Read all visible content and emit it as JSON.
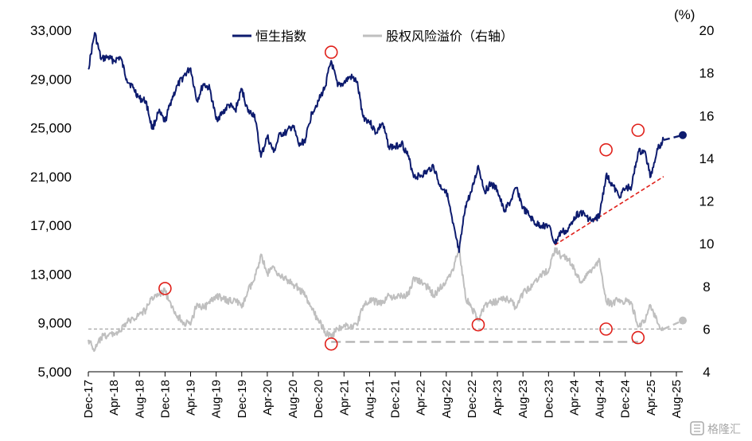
{
  "chart_data": {
    "type": "line",
    "title": "",
    "legend_position": "top-center",
    "right_axis_unit": "(%)",
    "grid": false,
    "x_labels": [
      "Dec-17",
      "Apr-18",
      "Aug-18",
      "Dec-18",
      "Apr-19",
      "Aug-19",
      "Dec-19",
      "Apr-20",
      "Aug-20",
      "Dec-20",
      "Apr-21",
      "Aug-21",
      "Dec-21",
      "Apr-22",
      "Aug-22",
      "Dec-22",
      "Apr-23",
      "Aug-23",
      "Dec-23",
      "Apr-24",
      "Aug-24",
      "Dec-24",
      "Apr-25",
      "Aug-25"
    ],
    "y_left": {
      "ticks": [
        5000,
        9000,
        13000,
        17000,
        21000,
        25000,
        29000,
        33000
      ],
      "tick_labels": [
        "5,000",
        "9,000",
        "13,000",
        "17,000",
        "21,000",
        "25,000",
        "29,000",
        "33,000"
      ],
      "range": [
        5000,
        33000
      ]
    },
    "y_right": {
      "ticks": [
        4,
        6,
        8,
        10,
        12,
        14,
        16,
        18,
        20
      ],
      "tick_labels": [
        "4",
        "6",
        "8",
        "10",
        "12",
        "14",
        "16",
        "18",
        "20"
      ],
      "range": [
        4,
        20
      ]
    },
    "series": [
      {
        "name": "恒生指数",
        "axis": "left",
        "color": "#0d1b6e",
        "points": [
          [
            "Dec-17",
            29800
          ],
          [
            "Jan-18",
            32800
          ],
          [
            "Feb-18",
            30600
          ],
          [
            "Mar-18",
            30800
          ],
          [
            "Apr-18",
            30500
          ],
          [
            "May-18",
            30800
          ],
          [
            "Jun-18",
            29000
          ],
          [
            "Jul-18",
            28300
          ],
          [
            "Aug-18",
            27400
          ],
          [
            "Sep-18",
            27200
          ],
          [
            "Oct-18",
            24900
          ],
          [
            "Nov-18",
            26300
          ],
          [
            "Dec-18",
            25500
          ],
          [
            "Jan-19",
            27300
          ],
          [
            "Feb-19",
            28500
          ],
          [
            "Mar-19",
            29300
          ],
          [
            "Apr-19",
            29900
          ],
          [
            "May-19",
            27200
          ],
          [
            "Jun-19",
            28600
          ],
          [
            "Jul-19",
            28200
          ],
          [
            "Aug-19",
            25700
          ],
          [
            "Sep-19",
            26200
          ],
          [
            "Oct-19",
            26900
          ],
          [
            "Nov-19",
            26400
          ],
          [
            "Dec-19",
            28200
          ],
          [
            "Jan-20",
            26300
          ],
          [
            "Feb-20",
            26100
          ],
          [
            "Mar-20",
            22600
          ],
          [
            "Apr-20",
            24300
          ],
          [
            "May-20",
            23000
          ],
          [
            "Jun-20",
            24500
          ],
          [
            "Jul-20",
            24600
          ],
          [
            "Aug-20",
            25200
          ],
          [
            "Sep-20",
            23500
          ],
          [
            "Oct-20",
            24100
          ],
          [
            "Nov-20",
            26300
          ],
          [
            "Dec-20",
            27200
          ],
          [
            "Jan-21",
            28300
          ],
          [
            "Feb-21",
            30500
          ],
          [
            "Mar-21",
            28400
          ],
          [
            "Apr-21",
            28700
          ],
          [
            "May-21",
            29200
          ],
          [
            "Jun-21",
            28800
          ],
          [
            "Jul-21",
            25900
          ],
          [
            "Aug-21",
            25500
          ],
          [
            "Sep-21",
            24600
          ],
          [
            "Oct-21",
            25400
          ],
          [
            "Nov-21",
            23500
          ],
          [
            "Dec-21",
            23400
          ],
          [
            "Jan-22",
            23800
          ],
          [
            "Feb-22",
            22700
          ],
          [
            "Mar-22",
            21000
          ],
          [
            "Apr-22",
            21100
          ],
          [
            "May-22",
            21400
          ],
          [
            "Jun-22",
            21900
          ],
          [
            "Jul-22",
            20200
          ],
          [
            "Aug-22",
            19900
          ],
          [
            "Sep-22",
            17200
          ],
          [
            "Oct-22",
            14800
          ],
          [
            "Nov-22",
            18600
          ],
          [
            "Dec-22",
            19800
          ],
          [
            "Jan-23",
            21900
          ],
          [
            "Feb-23",
            19800
          ],
          [
            "Mar-23",
            20400
          ],
          [
            "Apr-23",
            19900
          ],
          [
            "May-23",
            18200
          ],
          [
            "Jun-23",
            18900
          ],
          [
            "Jul-23",
            20100
          ],
          [
            "Aug-23",
            18400
          ],
          [
            "Sep-23",
            17800
          ],
          [
            "Oct-23",
            17100
          ],
          [
            "Nov-23",
            17000
          ],
          [
            "Dec-23",
            17000
          ],
          [
            "Jan-24",
            15500
          ],
          [
            "Feb-24",
            16500
          ],
          [
            "Mar-24",
            16500
          ],
          [
            "Apr-24",
            17700
          ],
          [
            "May-24",
            18100
          ],
          [
            "Jun-24",
            17700
          ],
          [
            "Jul-24",
            17300
          ],
          [
            "Aug-24",
            17900
          ],
          [
            "Sep-24",
            21100
          ],
          [
            "Oct-24",
            20300
          ],
          [
            "Nov-24",
            19400
          ],
          [
            "Dec-24",
            20000
          ],
          [
            "Jan-25",
            20200
          ],
          [
            "Feb-25",
            23000
          ],
          [
            "Mar-25",
            23100
          ],
          [
            "Apr-25",
            21000
          ],
          [
            "May-25",
            23300
          ],
          [
            "Jun-25",
            24000
          ]
        ],
        "projection": [
          [
            "Jun-25",
            24000
          ],
          [
            "Sep-25",
            24400
          ]
        ]
      },
      {
        "name": "股权风险溢价（右轴）",
        "axis": "right",
        "color": "#bfbfbf",
        "points": [
          [
            "Dec-17",
            5.5
          ],
          [
            "Jan-18",
            5.0
          ],
          [
            "Feb-18",
            5.6
          ],
          [
            "Mar-18",
            5.7
          ],
          [
            "Apr-18",
            5.8
          ],
          [
            "May-18",
            5.9
          ],
          [
            "Jun-18",
            6.3
          ],
          [
            "Jul-18",
            6.5
          ],
          [
            "Aug-18",
            6.7
          ],
          [
            "Sep-18",
            6.9
          ],
          [
            "Oct-18",
            7.5
          ],
          [
            "Nov-18",
            7.6
          ],
          [
            "Dec-18",
            7.8
          ],
          [
            "Jan-19",
            7.0
          ],
          [
            "Feb-19",
            6.6
          ],
          [
            "Mar-19",
            6.3
          ],
          [
            "Apr-19",
            6.2
          ],
          [
            "May-19",
            7.2
          ],
          [
            "Jun-19",
            7.0
          ],
          [
            "Jul-19",
            7.2
          ],
          [
            "Aug-19",
            7.6
          ],
          [
            "Sep-19",
            7.4
          ],
          [
            "Oct-19",
            7.3
          ],
          [
            "Nov-19",
            7.4
          ],
          [
            "Dec-19",
            7.0
          ],
          [
            "Jan-20",
            7.8
          ],
          [
            "Feb-20",
            8.3
          ],
          [
            "Mar-20",
            9.5
          ],
          [
            "Apr-20",
            8.6
          ],
          [
            "May-20",
            8.9
          ],
          [
            "Jun-20",
            8.5
          ],
          [
            "Jul-20",
            8.3
          ],
          [
            "Aug-20",
            8.1
          ],
          [
            "Sep-20",
            7.9
          ],
          [
            "Oct-20",
            7.5
          ],
          [
            "Nov-20",
            6.9
          ],
          [
            "Dec-20",
            6.4
          ],
          [
            "Jan-21",
            5.9
          ],
          [
            "Feb-21",
            5.6
          ],
          [
            "Mar-21",
            6.0
          ],
          [
            "Apr-21",
            6.2
          ],
          [
            "May-21",
            6.1
          ],
          [
            "Jun-21",
            6.2
          ],
          [
            "Jul-21",
            7.1
          ],
          [
            "Aug-21",
            7.3
          ],
          [
            "Sep-21",
            7.3
          ],
          [
            "Oct-21",
            7.2
          ],
          [
            "Nov-21",
            7.6
          ],
          [
            "Dec-21",
            7.4
          ],
          [
            "Jan-22",
            7.6
          ],
          [
            "Feb-22",
            7.6
          ],
          [
            "Mar-22",
            8.4
          ],
          [
            "Apr-22",
            8.2
          ],
          [
            "May-22",
            8.0
          ],
          [
            "Jun-22",
            7.6
          ],
          [
            "Jul-22",
            7.9
          ],
          [
            "Aug-22",
            8.3
          ],
          [
            "Sep-22",
            8.8
          ],
          [
            "Oct-22",
            9.8
          ],
          [
            "Nov-22",
            7.5
          ],
          [
            "Dec-22",
            7.0
          ],
          [
            "Jan-23",
            6.4
          ],
          [
            "Feb-23",
            7.1
          ],
          [
            "Mar-23",
            7.2
          ],
          [
            "Apr-23",
            7.3
          ],
          [
            "May-23",
            7.5
          ],
          [
            "Jun-23",
            7.3
          ],
          [
            "Jul-23",
            7.0
          ],
          [
            "Aug-23",
            7.7
          ],
          [
            "Sep-23",
            7.9
          ],
          [
            "Oct-23",
            8.3
          ],
          [
            "Nov-23",
            8.6
          ],
          [
            "Dec-23",
            8.7
          ],
          [
            "Jan-24",
            9.8
          ],
          [
            "Feb-24",
            9.4
          ],
          [
            "Mar-24",
            9.3
          ],
          [
            "Apr-24",
            8.8
          ],
          [
            "May-24",
            8.2
          ],
          [
            "Jun-24",
            8.5
          ],
          [
            "Jul-24",
            8.9
          ],
          [
            "Aug-24",
            9.2
          ],
          [
            "Sep-24",
            7.3
          ],
          [
            "Oct-24",
            7.2
          ],
          [
            "Nov-24",
            7.4
          ],
          [
            "Dec-24",
            7.3
          ],
          [
            "Jan-25",
            7.2
          ],
          [
            "Feb-25",
            6.1
          ],
          [
            "Mar-25",
            6.4
          ],
          [
            "Apr-25",
            7.1
          ],
          [
            "May-25",
            6.3
          ],
          [
            "Jun-25",
            6.0
          ]
        ],
        "projection": [
          [
            "Jun-25",
            6.0
          ],
          [
            "Sep-25",
            6.4
          ]
        ]
      }
    ],
    "reference_lines": [
      {
        "axis": "right",
        "y": 6.0,
        "from": "Dec-17",
        "to": "Sep-25",
        "style": "dashed",
        "color": "#b0b0b0"
      },
      {
        "axis": "right",
        "y": 5.4,
        "from": "Feb-21",
        "to": "Feb-25",
        "style": "dashed",
        "color": "#b0b0b0"
      },
      {
        "axis": "left",
        "trend": [
          [
            "Jan-24",
            15400
          ],
          [
            "Jun-25",
            21000
          ]
        ],
        "style": "dashed",
        "color": "#e0201a"
      }
    ],
    "highlight_markers": [
      {
        "series": "恒生指数",
        "x": "Feb-21",
        "y": 31200
      },
      {
        "series": "恒生指数",
        "x": "Sep-24",
        "y": 23200
      },
      {
        "series": "恒生指数",
        "x": "Feb-25",
        "y": 24800
      },
      {
        "series": "股权风险溢价（右轴）",
        "x": "Dec-18",
        "y": 7.9
      },
      {
        "series": "股权风险溢价（右轴）",
        "x": "Feb-21",
        "y": 5.3
      },
      {
        "series": "股权风险溢价（右轴）",
        "x": "Jan-23",
        "y": 6.2
      },
      {
        "series": "股权风险溢价（右轴）",
        "x": "Sep-24",
        "y": 6.0
      },
      {
        "series": "股权风险溢价（右轴）",
        "x": "Feb-25",
        "y": 5.6
      }
    ],
    "end_markers": [
      {
        "series": "恒生指数",
        "x": "Sep-25",
        "y": 24400
      },
      {
        "series": "股权风险溢价（右轴）",
        "x": "Sep-25",
        "y": 6.4
      }
    ]
  },
  "watermark": {
    "text": "格隆汇",
    "icon": "glh-logo-icon"
  }
}
